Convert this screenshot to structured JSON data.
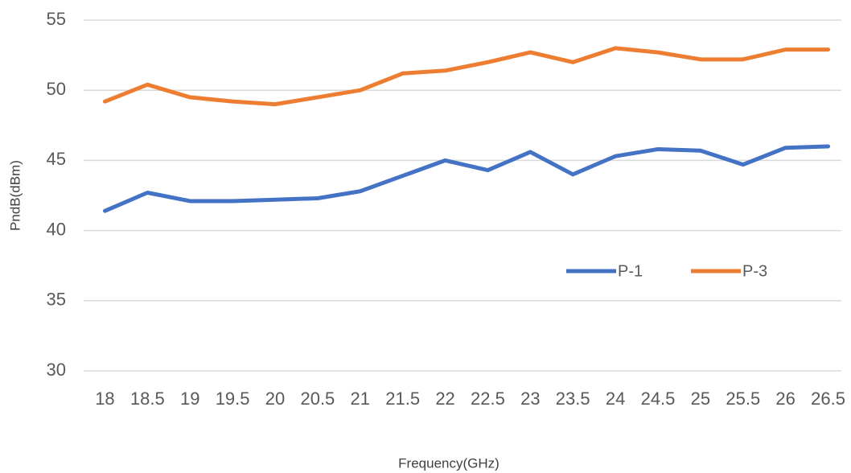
{
  "chart_data": {
    "type": "line",
    "xlabel": "Frequency(GHz)",
    "ylabel": "PndB(dBm)",
    "categories": [
      "18",
      "18.5",
      "19",
      "19.5",
      "20",
      "20.5",
      "21",
      "21.5",
      "22",
      "22.5",
      "23",
      "23.5",
      "24",
      "24.5",
      "25",
      "25.5",
      "26",
      "26.5"
    ],
    "series": [
      {
        "name": "P-1",
        "color": "#4472c4",
        "values": [
          41.4,
          42.7,
          42.1,
          42.1,
          42.2,
          42.3,
          42.8,
          43.9,
          45.0,
          44.3,
          45.6,
          44.0,
          45.3,
          45.8,
          45.7,
          44.7,
          45.9,
          46.0
        ]
      },
      {
        "name": "P-3",
        "color": "#ed7d31",
        "values": [
          49.2,
          50.4,
          49.5,
          49.2,
          49.0,
          49.5,
          50.0,
          51.2,
          51.4,
          52.0,
          52.7,
          52.0,
          53.0,
          52.7,
          52.2,
          52.2,
          52.9,
          52.9
        ]
      }
    ],
    "ylim": [
      30,
      55
    ],
    "yticks": [
      30,
      35,
      40,
      45,
      50,
      55
    ],
    "grid": true
  }
}
